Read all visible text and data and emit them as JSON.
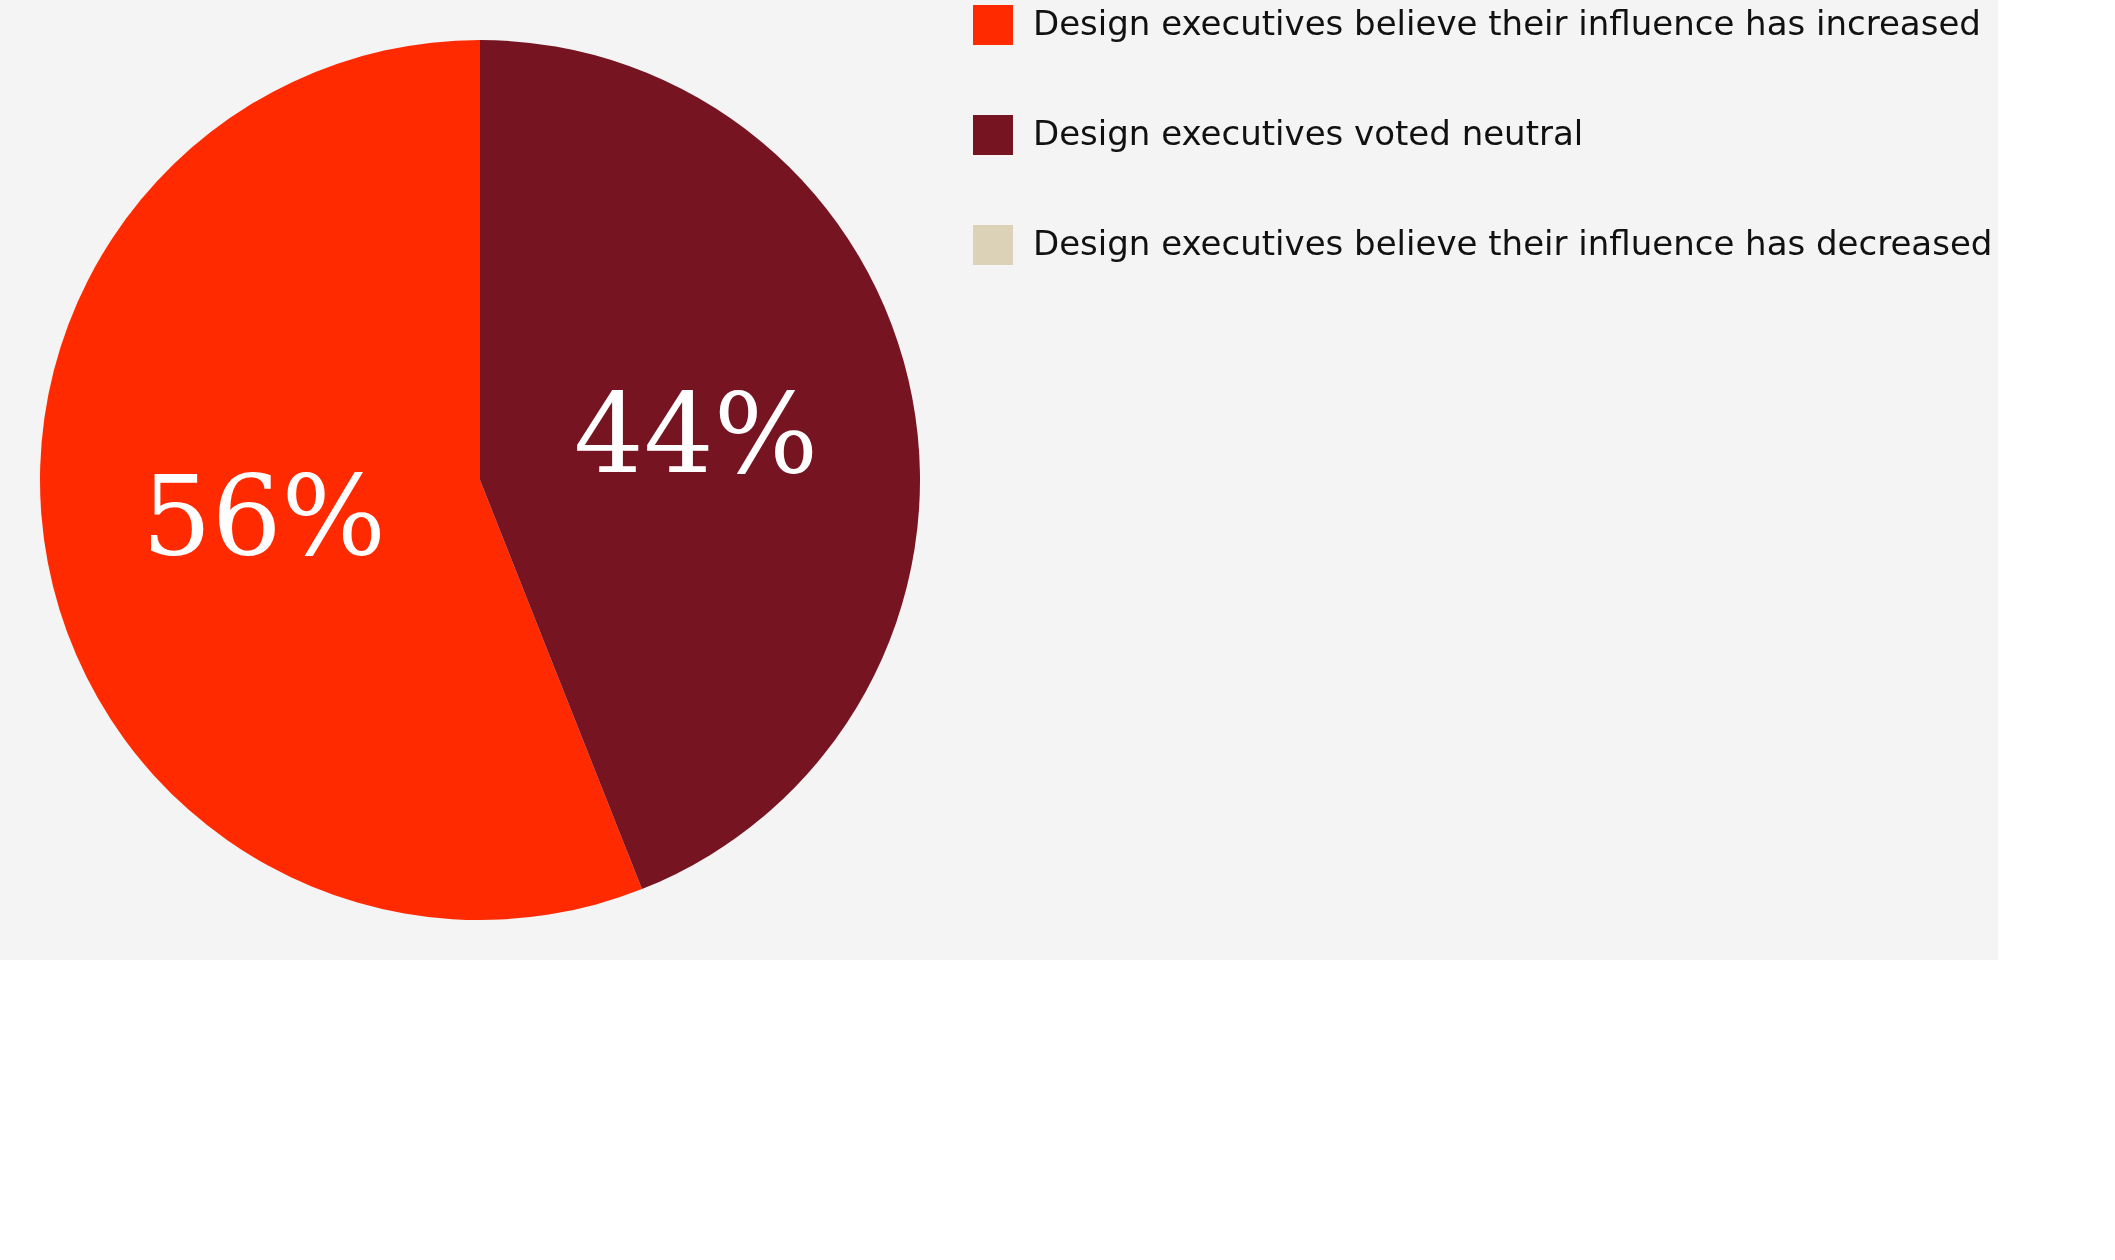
{
  "chart_data": {
    "type": "pie",
    "categories": [
      "Design executives believe their influence has increased",
      "Design executives voted neutral",
      "Design executives believe their influence has decreased"
    ],
    "values": [
      56,
      44,
      0
    ],
    "colors": [
      "#ff2a00",
      "#761422",
      "#dcd2b8"
    ],
    "value_labels": [
      "56%",
      "44%",
      null
    ],
    "legend": "right"
  }
}
